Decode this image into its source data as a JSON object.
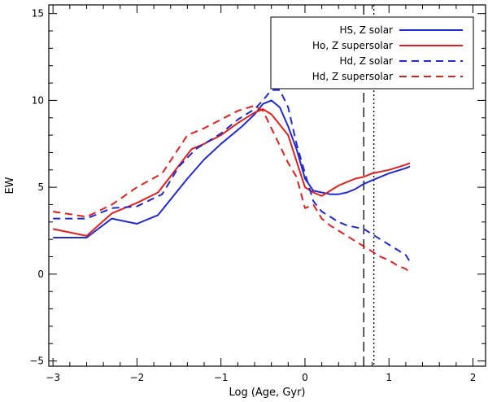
{
  "chart_data": {
    "type": "line",
    "xlabel": "Log (Age, Gyr)",
    "ylabel": "EW",
    "xlim": [
      -3.05,
      2.15
    ],
    "ylim": [
      -5.3,
      15.5
    ],
    "x_ticks": [
      -3,
      -2,
      -1,
      0,
      1,
      2
    ],
    "x_tick_labels": [
      "−3",
      "−2",
      "−1",
      "0",
      "1",
      "2"
    ],
    "y_ticks": [
      -5,
      0,
      5,
      10,
      15
    ],
    "y_tick_labels": [
      "−5",
      "0",
      "5",
      "10",
      "15"
    ],
    "grid": false,
    "legend_position": "top-right",
    "colors": {
      "blue": "#1f2bd0",
      "red": "#e0201c",
      "axis": "#000000"
    },
    "series": [
      {
        "name": "HS, Z solar",
        "color": "#1f2bd0",
        "dash": "solid",
        "x": [
          -3.0,
          -2.6,
          -2.3,
          -2.0,
          -1.75,
          -1.4,
          -1.2,
          -1.0,
          -0.75,
          -0.6,
          -0.5,
          -0.4,
          -0.3,
          -0.2,
          -0.1,
          0.0,
          0.1,
          0.2,
          0.3,
          0.4,
          0.5,
          0.6,
          0.7,
          0.8,
          1.0,
          1.2,
          1.25
        ],
        "y": [
          2.1,
          2.1,
          3.2,
          2.9,
          3.4,
          5.5,
          6.6,
          7.5,
          8.5,
          9.2,
          9.8,
          10.0,
          9.6,
          8.5,
          7.2,
          5.5,
          4.8,
          4.7,
          4.6,
          4.6,
          4.7,
          4.9,
          5.2,
          5.4,
          5.8,
          6.1,
          6.2
        ]
      },
      {
        "name": "Ho, Z supersolar",
        "color": "#e0201c",
        "dash": "solid",
        "x": [
          -3.0,
          -2.6,
          -2.3,
          -2.0,
          -1.75,
          -1.35,
          -1.2,
          -1.0,
          -0.8,
          -0.6,
          -0.5,
          -0.4,
          -0.3,
          -0.2,
          -0.1,
          0.0,
          0.1,
          0.2,
          0.3,
          0.4,
          0.5,
          0.6,
          0.7,
          0.8,
          1.0,
          1.2,
          1.25
        ],
        "y": [
          2.6,
          2.2,
          3.5,
          4.1,
          4.7,
          7.2,
          7.5,
          8.0,
          8.7,
          9.3,
          9.5,
          9.2,
          8.6,
          8.0,
          6.5,
          5.0,
          4.7,
          4.5,
          4.8,
          5.1,
          5.3,
          5.5,
          5.6,
          5.8,
          6.0,
          6.3,
          6.4
        ]
      },
      {
        "name": "Hd, Z solar",
        "color": "#1f2bd0",
        "dash": "dashed",
        "x": [
          -3.0,
          -2.6,
          -2.3,
          -2.0,
          -1.7,
          -1.5,
          -1.3,
          -1.0,
          -0.8,
          -0.6,
          -0.5,
          -0.4,
          -0.3,
          -0.2,
          -0.1,
          0.0,
          0.1,
          0.2,
          0.3,
          0.4,
          0.5,
          0.6,
          0.7,
          0.8,
          0.9,
          1.0,
          1.1,
          1.2,
          1.25
        ],
        "y": [
          3.2,
          3.2,
          3.8,
          3.9,
          4.6,
          6.2,
          7.2,
          8.1,
          8.9,
          9.5,
          10.0,
          10.6,
          10.6,
          9.6,
          7.5,
          5.8,
          4.2,
          3.6,
          3.3,
          3.0,
          2.8,
          2.7,
          2.6,
          2.3,
          2.0,
          1.7,
          1.4,
          1.1,
          0.7
        ]
      },
      {
        "name": "Hd, Z supersolar",
        "color": "#e0201c",
        "dash": "dashed",
        "x": [
          -3.0,
          -2.6,
          -2.3,
          -2.0,
          -1.7,
          -1.4,
          -1.2,
          -1.0,
          -0.8,
          -0.6,
          -0.5,
          -0.4,
          -0.3,
          -0.2,
          -0.1,
          0.0,
          0.1,
          0.2,
          0.3,
          0.4,
          0.5,
          0.6,
          0.7,
          0.8,
          0.9,
          1.0,
          1.1,
          1.2,
          1.25
        ],
        "y": [
          3.6,
          3.3,
          4.0,
          5.0,
          5.8,
          8.0,
          8.4,
          8.9,
          9.4,
          9.7,
          9.4,
          8.4,
          7.4,
          6.4,
          5.6,
          3.8,
          4.0,
          3.2,
          2.8,
          2.5,
          2.2,
          1.9,
          1.6,
          1.3,
          1.0,
          0.8,
          0.5,
          0.3,
          0.1
        ]
      }
    ],
    "vertical_lines": [
      {
        "x": 0.7,
        "style": "dashed"
      },
      {
        "x": 0.82,
        "style": "dotted"
      }
    ]
  }
}
